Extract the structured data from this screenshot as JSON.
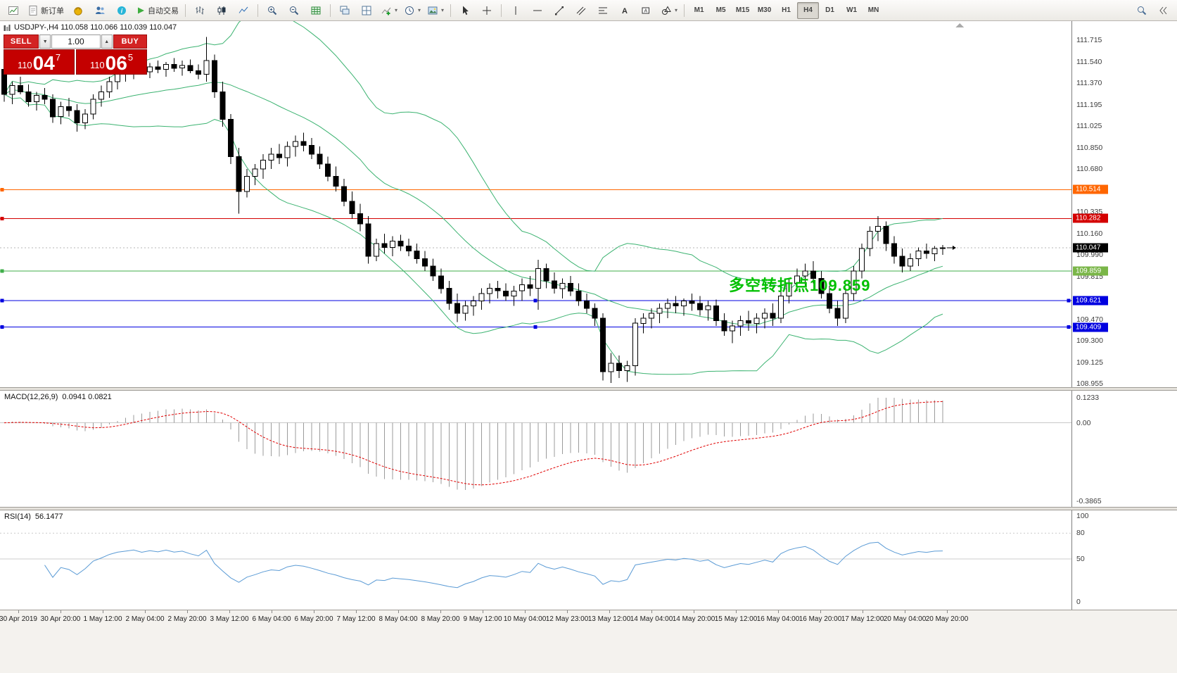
{
  "toolbar": {
    "new_order_label": "新订单",
    "autotrading_label": "自动交易",
    "timeframes": [
      "M1",
      "M5",
      "M15",
      "M30",
      "H1",
      "H4",
      "D1",
      "W1",
      "MN"
    ],
    "active_timeframe": "H4"
  },
  "symbol_bar": {
    "text": "USDJPY-,H4  110.058 110.066 110.039 110.047"
  },
  "one_click": {
    "sell_label": "SELL",
    "buy_label": "BUY",
    "volume": "1.00",
    "sell_price": {
      "base": "110",
      "big": "04",
      "sup": "7"
    },
    "buy_price": {
      "base": "110",
      "big": "06",
      "sup": "5"
    },
    "color": "#c40000",
    "button_color": "#d32424"
  },
  "annotation": {
    "text": "多空转折点109.859",
    "color": "#00c000"
  },
  "chart_data": {
    "type": "candlestick",
    "symbol": "USDJPY-",
    "timeframe": "H4",
    "title": "USDJPY-,H4",
    "current": {
      "open": 110.058,
      "high": 110.066,
      "low": 110.039,
      "close": 110.047
    },
    "price_axis": {
      "max": 111.715,
      "min": 108.955,
      "ticks": [
        111.715,
        111.54,
        111.37,
        111.195,
        111.025,
        110.85,
        110.68,
        110.335,
        110.16,
        109.99,
        109.815,
        109.47,
        109.3,
        109.125,
        108.955
      ]
    },
    "hlines": [
      {
        "price": 110.514,
        "color": "#ff6600",
        "label_bg": "#ff6600",
        "handles": [
          3
        ]
      },
      {
        "price": 110.282,
        "color": "#d40000",
        "label_bg": "#d40000",
        "handles": [
          3
        ]
      },
      {
        "price": 110.047,
        "color": "#b4b4b4",
        "dashed": true,
        "label_bg": "#000000",
        "current": true
      },
      {
        "price": 109.859,
        "color": "#3fae49",
        "label_bg": "#7ab648",
        "handles": [
          3
        ]
      },
      {
        "price": 109.621,
        "color": "#0000e0",
        "label_bg": "#0000e0",
        "handles": [
          3,
          761,
          1519
        ]
      },
      {
        "price": 109.409,
        "color": "#0000e0",
        "label_bg": "#0000e0",
        "handles": [
          3,
          761,
          1519
        ]
      }
    ],
    "indicators": {
      "bollinger": {
        "period": 20,
        "deviation": 2,
        "color": "#3cb371"
      }
    },
    "candles": [
      [
        111.48,
        111.5,
        111.22,
        111.28
      ],
      [
        111.28,
        111.38,
        111.2,
        111.35
      ],
      [
        111.35,
        111.42,
        111.28,
        111.3
      ],
      [
        111.3,
        111.36,
        111.18,
        111.22
      ],
      [
        111.22,
        111.3,
        111.15,
        111.27
      ],
      [
        111.27,
        111.33,
        111.2,
        111.24
      ],
      [
        111.24,
        111.28,
        111.05,
        111.1
      ],
      [
        111.1,
        111.22,
        111.04,
        111.18
      ],
      [
        111.18,
        111.25,
        111.1,
        111.15
      ],
      [
        111.15,
        111.2,
        110.98,
        111.05
      ],
      [
        111.05,
        111.16,
        111.0,
        111.12
      ],
      [
        111.12,
        111.28,
        111.08,
        111.24
      ],
      [
        111.24,
        111.35,
        111.18,
        111.3
      ],
      [
        111.3,
        111.42,
        111.25,
        111.38
      ],
      [
        111.38,
        111.48,
        111.32,
        111.44
      ],
      [
        111.44,
        111.52,
        111.38,
        111.47
      ],
      [
        111.47,
        111.54,
        111.4,
        111.5
      ],
      [
        111.5,
        111.56,
        111.44,
        111.46
      ],
      [
        111.46,
        111.53,
        111.41,
        111.5
      ],
      [
        111.5,
        111.55,
        111.45,
        111.48
      ],
      [
        111.48,
        111.54,
        111.42,
        111.52
      ],
      [
        111.52,
        111.57,
        111.46,
        111.49
      ],
      [
        111.49,
        111.55,
        111.43,
        111.51
      ],
      [
        111.51,
        111.56,
        111.45,
        111.47
      ],
      [
        111.47,
        111.52,
        111.4,
        111.44
      ],
      [
        111.44,
        111.74,
        111.38,
        111.55
      ],
      [
        111.55,
        111.6,
        111.25,
        111.3
      ],
      [
        111.3,
        111.38,
        111.02,
        111.08
      ],
      [
        111.08,
        111.12,
        110.72,
        110.78
      ],
      [
        110.78,
        110.85,
        110.32,
        110.5
      ],
      [
        110.5,
        110.68,
        110.45,
        110.62
      ],
      [
        110.62,
        110.72,
        110.55,
        110.68
      ],
      [
        110.68,
        110.8,
        110.6,
        110.75
      ],
      [
        110.75,
        110.85,
        110.68,
        110.8
      ],
      [
        110.8,
        110.88,
        110.72,
        110.77
      ],
      [
        110.77,
        110.9,
        110.7,
        110.86
      ],
      [
        110.86,
        110.95,
        110.78,
        110.9
      ],
      [
        110.9,
        110.97,
        110.82,
        110.87
      ],
      [
        110.87,
        110.93,
        110.76,
        110.8
      ],
      [
        110.8,
        110.86,
        110.68,
        110.72
      ],
      [
        110.72,
        110.78,
        110.58,
        110.62
      ],
      [
        110.62,
        110.7,
        110.5,
        110.54
      ],
      [
        110.54,
        110.6,
        110.38,
        110.42
      ],
      [
        110.42,
        110.5,
        110.28,
        110.32
      ],
      [
        110.32,
        110.4,
        110.18,
        110.24
      ],
      [
        110.24,
        110.3,
        109.92,
        109.98
      ],
      [
        109.98,
        110.12,
        109.94,
        110.08
      ],
      [
        110.08,
        110.16,
        110.0,
        110.05
      ],
      [
        110.05,
        110.14,
        109.98,
        110.1
      ],
      [
        110.1,
        110.15,
        110.02,
        110.06
      ],
      [
        110.06,
        110.12,
        109.98,
        110.02
      ],
      [
        110.02,
        110.08,
        109.92,
        109.96
      ],
      [
        109.96,
        110.02,
        109.86,
        109.9
      ],
      [
        109.9,
        109.96,
        109.78,
        109.82
      ],
      [
        109.82,
        109.88,
        109.68,
        109.72
      ],
      [
        109.72,
        109.78,
        109.55,
        109.6
      ],
      [
        109.6,
        109.68,
        109.45,
        109.52
      ],
      [
        109.52,
        109.62,
        109.46,
        109.58
      ],
      [
        109.58,
        109.66,
        109.5,
        109.62
      ],
      [
        109.62,
        109.72,
        109.55,
        109.68
      ],
      [
        109.68,
        109.76,
        109.6,
        109.72
      ],
      [
        109.72,
        109.78,
        109.64,
        109.7
      ],
      [
        109.7,
        109.76,
        109.62,
        109.66
      ],
      [
        109.66,
        109.74,
        109.58,
        109.7
      ],
      [
        109.7,
        109.8,
        109.62,
        109.75
      ],
      [
        109.75,
        109.82,
        109.66,
        109.72
      ],
      [
        109.72,
        109.95,
        109.55,
        109.88
      ],
      [
        109.88,
        109.92,
        109.72,
        109.78
      ],
      [
        109.78,
        109.85,
        109.68,
        109.72
      ],
      [
        109.72,
        109.8,
        109.64,
        109.76
      ],
      [
        109.76,
        109.82,
        109.66,
        109.7
      ],
      [
        109.7,
        109.76,
        109.58,
        109.62
      ],
      [
        109.62,
        109.68,
        109.52,
        109.56
      ],
      [
        109.56,
        109.6,
        109.42,
        109.48
      ],
      [
        109.48,
        109.52,
        108.98,
        109.05
      ],
      [
        109.05,
        109.2,
        108.96,
        109.12
      ],
      [
        109.12,
        109.18,
        109.0,
        109.06
      ],
      [
        109.06,
        109.14,
        108.97,
        109.1
      ],
      [
        109.1,
        109.48,
        109.02,
        109.44
      ],
      [
        109.44,
        109.52,
        109.36,
        109.48
      ],
      [
        109.48,
        109.56,
        109.4,
        109.52
      ],
      [
        109.52,
        109.6,
        109.44,
        109.56
      ],
      [
        109.56,
        109.64,
        109.48,
        109.6
      ],
      [
        109.6,
        109.66,
        109.52,
        109.58
      ],
      [
        109.58,
        109.64,
        109.5,
        109.62
      ],
      [
        109.62,
        109.68,
        109.54,
        109.6
      ],
      [
        109.6,
        109.66,
        109.5,
        109.55
      ],
      [
        109.55,
        109.62,
        109.46,
        109.58
      ],
      [
        109.58,
        109.63,
        109.42,
        109.46
      ],
      [
        109.46,
        109.52,
        109.34,
        109.38
      ],
      [
        109.38,
        109.46,
        109.28,
        109.42
      ],
      [
        109.42,
        109.5,
        109.34,
        109.46
      ],
      [
        109.46,
        109.54,
        109.38,
        109.44
      ],
      [
        109.44,
        109.52,
        109.36,
        109.48
      ],
      [
        109.48,
        109.56,
        109.4,
        109.52
      ],
      [
        109.52,
        109.6,
        109.42,
        109.48
      ],
      [
        109.48,
        109.7,
        109.44,
        109.66
      ],
      [
        109.66,
        109.8,
        109.6,
        109.76
      ],
      [
        109.76,
        109.88,
        109.7,
        109.82
      ],
      [
        109.82,
        109.92,
        109.74,
        109.86
      ],
      [
        109.86,
        109.94,
        109.76,
        109.8
      ],
      [
        109.8,
        109.86,
        109.64,
        109.68
      ],
      [
        109.68,
        109.74,
        109.52,
        109.56
      ],
      [
        109.56,
        109.62,
        109.42,
        109.48
      ],
      [
        109.48,
        109.72,
        109.44,
        109.68
      ],
      [
        109.68,
        109.9,
        109.62,
        109.86
      ],
      [
        109.86,
        110.08,
        109.8,
        110.04
      ],
      [
        110.04,
        110.22,
        109.98,
        110.18
      ],
      [
        110.18,
        110.3,
        110.1,
        110.22
      ],
      [
        110.22,
        110.26,
        110.02,
        110.08
      ],
      [
        110.08,
        110.14,
        109.92,
        109.98
      ],
      [
        109.98,
        110.04,
        109.85,
        109.9
      ],
      [
        109.9,
        110.0,
        109.86,
        109.96
      ],
      [
        109.96,
        110.05,
        109.9,
        110.02
      ],
      [
        110.02,
        110.08,
        109.96,
        110.0
      ],
      [
        110.0,
        110.06,
        109.94,
        110.04
      ],
      [
        110.04,
        110.07,
        109.99,
        110.047
      ]
    ]
  },
  "macd": {
    "name": "MACD(12,26,9)",
    "values": "0.0941 0.0821",
    "axis": {
      "max": 0.1233,
      "min": -0.3865,
      "labels": [
        {
          "v": 0.1233,
          "t": "0.1233"
        },
        {
          "v": 0,
          "t": "0.00"
        },
        {
          "v": -0.3865,
          "t": "-0.3865"
        }
      ]
    },
    "colors": {
      "histogram": "#9b9b9b",
      "signal": "#e00000"
    }
  },
  "rsi": {
    "name": "RSI(14)",
    "value": "56.1477",
    "range": {
      "min": 0,
      "max": 100
    },
    "axis_labels": [
      {
        "v": 100,
        "t": "100"
      },
      {
        "v": 80,
        "t": "80"
      },
      {
        "v": 50,
        "t": "50"
      },
      {
        "v": 0,
        "t": "0"
      }
    ],
    "levels": [
      {
        "v": 80,
        "dash": true
      },
      {
        "v": 50,
        "dash": false
      }
    ],
    "color": "#5b9bd5"
  },
  "time_axis": [
    "30 Apr 2019",
    "30 Apr 20:00",
    "1 May 12:00",
    "2 May 04:00",
    "2 May 20:00",
    "3 May 12:00",
    "6 May 04:00",
    "6 May 20:00",
    "7 May 12:00",
    "8 May 04:00",
    "8 May 20:00",
    "9 May 12:00",
    "10 May 04:00",
    "12 May 23:00",
    "13 May 12:00",
    "14 May 04:00",
    "14 May 20:00",
    "15 May 12:00",
    "16 May 04:00",
    "16 May 20:00",
    "17 May 12:00",
    "20 May 04:00",
    "20 May 20:00"
  ]
}
